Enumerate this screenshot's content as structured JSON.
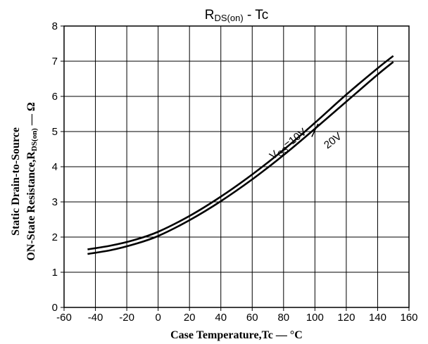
{
  "chart_data": {
    "type": "line",
    "title": {
      "main": "R",
      "sub": "DS(on)",
      "rest": " - Tc"
    },
    "xlabel": "Case Temperature,Tc — °C",
    "ylabel": {
      "line1": "Static Drain-to-Source",
      "line2_main": "ON-State Resistance,R",
      "line2_sub": "DS(on)",
      "line2_rest": " — Ω"
    },
    "xlim": [
      -60,
      160
    ],
    "ylim": [
      0,
      8
    ],
    "x_ticks": [
      "-60",
      "-40",
      "-20",
      "0",
      "20",
      "40",
      "60",
      "80",
      "100",
      "120",
      "140",
      "160"
    ],
    "y_ticks": [
      "0",
      "1",
      "2",
      "3",
      "4",
      "5",
      "6",
      "7",
      "8"
    ],
    "grid": true,
    "series": [
      {
        "name": "VGS=10V",
        "x": [
          -45,
          -30,
          -15,
          0,
          20,
          40,
          60,
          80,
          100,
          120,
          140,
          150
        ],
        "y": [
          1.65,
          1.76,
          1.92,
          2.15,
          2.6,
          3.15,
          3.78,
          4.48,
          5.25,
          6.05,
          6.8,
          7.15
        ]
      },
      {
        "name": "20V",
        "x": [
          -45,
          -30,
          -15,
          0,
          20,
          40,
          60,
          80,
          100,
          120,
          140,
          150
        ],
        "y": [
          1.52,
          1.63,
          1.8,
          2.03,
          2.48,
          3.02,
          3.64,
          4.33,
          5.08,
          5.85,
          6.62,
          6.98
        ]
      }
    ],
    "annotations": [
      {
        "main": "V",
        "sub": "GS",
        "rest": "=10V",
        "x": 95,
        "y": 4.95
      },
      {
        "main": "20V",
        "x": 108,
        "y": 4.5
      }
    ]
  }
}
